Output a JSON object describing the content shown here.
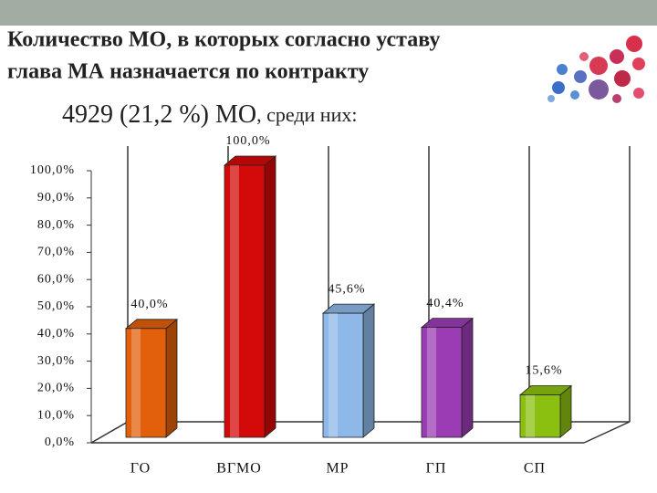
{
  "header": {
    "title_line1": "Количество МО, в которых согласно уставу",
    "title_line2": "глава МА назначается по контракту",
    "subtitle_main": "4929 (21,2 %) МО",
    "subtitle_rest": ", среди них:"
  },
  "chart_data": {
    "type": "bar3d",
    "categories": [
      "ГО",
      "ВГМО",
      "МР",
      "ГП",
      "СП"
    ],
    "values": [
      40.0,
      100.0,
      45.6,
      40.4,
      15.6
    ],
    "value_labels": [
      "40,0%",
      "100,0%",
      "45,6%",
      "40,4%",
      "15,6%"
    ],
    "colors": [
      "#e2600c",
      "#d40a0a",
      "#8db8e8",
      "#9b3cb4",
      "#8cc010"
    ],
    "ylim": [
      0,
      100
    ],
    "yticks": [
      {
        "value": 0,
        "label": "0,0%"
      },
      {
        "value": 10,
        "label": "10,0%"
      },
      {
        "value": 20,
        "label": "20,0%"
      },
      {
        "value": 30,
        "label": "30,0%"
      },
      {
        "value": 40,
        "label": "40,0%"
      },
      {
        "value": 50,
        "label": "50,0%"
      },
      {
        "value": 60,
        "label": "60,0%"
      },
      {
        "value": 70,
        "label": "70,0%"
      },
      {
        "value": 80,
        "label": "80,0%"
      },
      {
        "value": 90,
        "label": "90,0%"
      },
      {
        "value": 100,
        "label": "100,0%"
      }
    ]
  }
}
